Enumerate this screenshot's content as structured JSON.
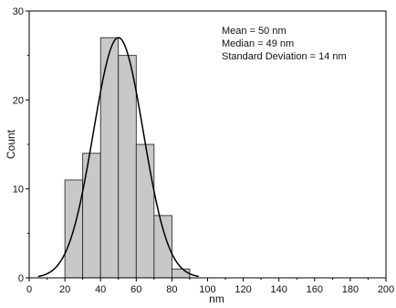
{
  "chart_data": {
    "type": "bar",
    "subtype": "histogram",
    "title": "",
    "xlabel": "nm",
    "ylabel": "Count",
    "xlim": [
      0,
      200
    ],
    "ylim": [
      0,
      30
    ],
    "x_ticks": [
      0,
      20,
      40,
      60,
      80,
      100,
      120,
      140,
      160,
      180,
      200
    ],
    "x_tick_labels": [
      "0",
      "20",
      "40",
      "60",
      "80",
      "100",
      "120",
      "140",
      "160",
      "180",
      "200"
    ],
    "y_ticks": [
      0,
      10,
      20,
      30
    ],
    "y_tick_labels": [
      "0",
      "10",
      "20",
      "30"
    ],
    "bins": [
      {
        "from": 20,
        "to": 30,
        "count": 11
      },
      {
        "from": 30,
        "to": 40,
        "count": 14
      },
      {
        "from": 40,
        "to": 50,
        "count": 27
      },
      {
        "from": 50,
        "to": 60,
        "count": 25
      },
      {
        "from": 60,
        "to": 70,
        "count": 15
      },
      {
        "from": 70,
        "to": 80,
        "count": 7
      },
      {
        "from": 80,
        "to": 90,
        "count": 1
      }
    ],
    "fit": {
      "type": "gaussian",
      "mean": 50,
      "sigma": 14,
      "peak": 27,
      "x_range": [
        5,
        95
      ]
    },
    "grid": false,
    "bar_color": "#c8c8c8",
    "annotations": [
      "Mean = 50 nm",
      "Median = 49 nm",
      "Standard Deviation = 14 nm"
    ]
  }
}
